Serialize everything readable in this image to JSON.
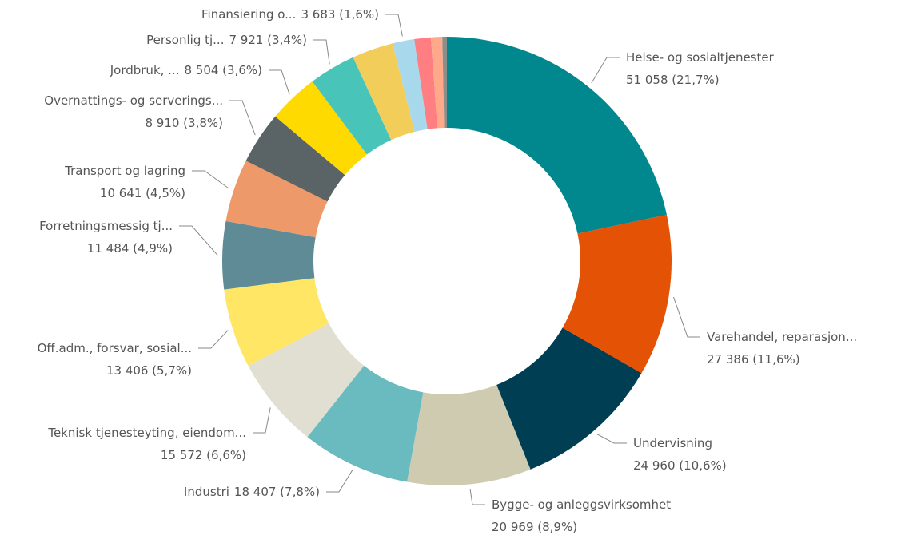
{
  "chart_data": {
    "type": "donut",
    "categories": [
      "Helse- og sosialtjenester",
      "Varehandel, reparasjon...",
      "Undervisning",
      "Bygge- og anleggsvirksomhet",
      "Industri",
      "Teknisk tjenesteyting, eiendom...",
      "Off.adm., forsvar, sosial...",
      "Forretningsmessig tj...",
      "Transport og lagring",
      "Overnattings- og serverings...",
      "Jordbruk, ...",
      "Personlig tj...",
      null,
      "Finansiering o...",
      null,
      null,
      null
    ],
    "values": [
      51058,
      27386,
      24960,
      20969,
      18407,
      15572,
      13406,
      11484,
      10641,
      8910,
      8504,
      7921,
      7000,
      3683,
      2800,
      1900,
      770
    ],
    "value_labels": [
      "51 058 (21,7%)",
      "27 386 (11,6%)",
      "24 960 (10,6%)",
      "20 969 (8,9%)",
      "18 407 (7,8%)",
      "15 572 (6,6%)",
      "13 406 (5,7%)",
      "11 484 (4,9%)",
      "10 641 (4,5%)",
      "8 910 (3,8%)",
      "8 504 (3,6%)",
      "7 921 (3,4%)",
      null,
      "3 683 (1,6%)",
      null,
      null,
      null
    ],
    "colors": [
      "#01888F",
      "#E35205",
      "#003F53",
      "#CFCBB0",
      "#6ABBC0",
      "#E1DFD1",
      "#FFE664",
      "#5F8B96",
      "#EE9969",
      "#5A6466",
      "#FFDA00",
      "#48C4B8",
      "#F2CD5A",
      "#A8D8EC",
      "#FF7E81",
      "#FFA98A",
      "#8A8F8C"
    ]
  }
}
